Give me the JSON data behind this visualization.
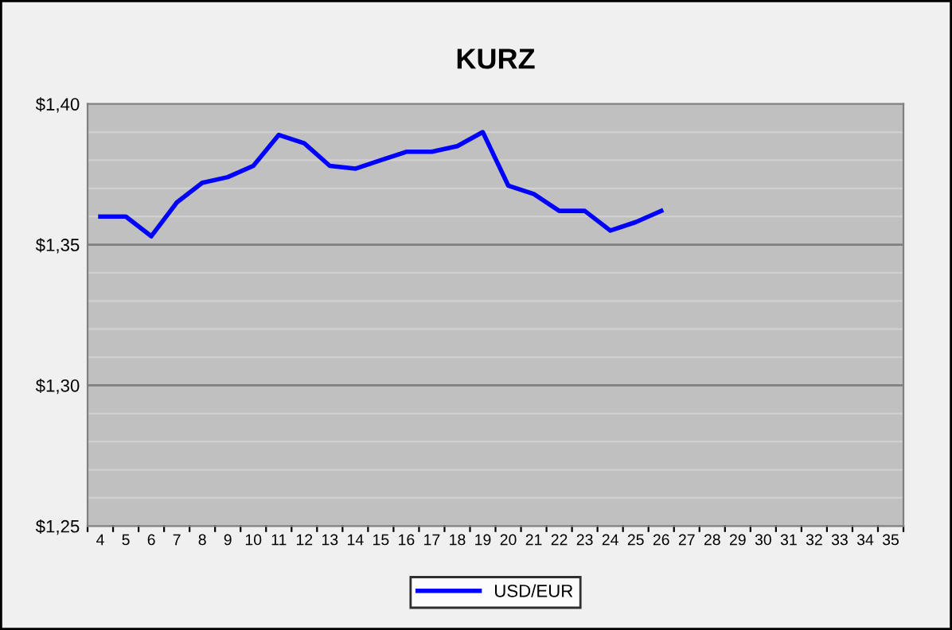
{
  "chart_data": {
    "type": "line",
    "title": "KURZ",
    "categories": [
      "4",
      "5",
      "6",
      "7",
      "8",
      "9",
      "10",
      "11",
      "12",
      "13",
      "14",
      "15",
      "16",
      "17",
      "18",
      "19",
      "20",
      "21",
      "22",
      "23",
      "24",
      "25",
      "26",
      "27",
      "28",
      "29",
      "30",
      "31",
      "32",
      "33",
      "34",
      "35"
    ],
    "series": [
      {
        "name": "USD/EUR",
        "color": "#0000ff",
        "values": [
          1.36,
          1.36,
          1.353,
          1.365,
          1.372,
          1.374,
          1.378,
          1.389,
          1.386,
          1.378,
          1.377,
          1.38,
          1.383,
          1.383,
          1.385,
          1.39,
          1.371,
          1.368,
          1.362,
          1.362,
          1.355,
          1.358,
          1.362,
          null,
          null,
          null,
          null,
          null,
          null,
          null,
          null,
          null
        ]
      }
    ],
    "ylim": [
      1.25,
      1.4
    ],
    "yticks": [
      {
        "value": 1.25,
        "label": "$1,25"
      },
      {
        "value": 1.26,
        "label": null
      },
      {
        "value": 1.27,
        "label": null
      },
      {
        "value": 1.28,
        "label": null
      },
      {
        "value": 1.29,
        "label": null
      },
      {
        "value": 1.3,
        "label": "$1,30"
      },
      {
        "value": 1.31,
        "label": null
      },
      {
        "value": 1.32,
        "label": null
      },
      {
        "value": 1.33,
        "label": null
      },
      {
        "value": 1.34,
        "label": null
      },
      {
        "value": 1.35,
        "label": "$1,35"
      },
      {
        "value": 1.36,
        "label": null
      },
      {
        "value": 1.37,
        "label": null
      },
      {
        "value": 1.38,
        "label": null
      },
      {
        "value": 1.39,
        "label": null
      },
      {
        "value": 1.4,
        "label": "$1,40"
      }
    ],
    "grid": "y",
    "legend": "bottom",
    "marker": "none",
    "line_style": "solid"
  }
}
